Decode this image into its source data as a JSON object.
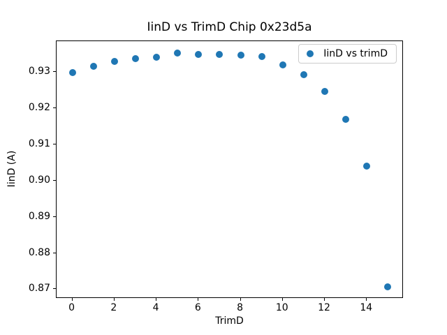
{
  "figure": {
    "background_color": "#ffffff",
    "spine_color": "#000000",
    "legend_border_color": "#cccccc"
  },
  "chart_data": {
    "type": "scatter",
    "title": "IinD vs TrimD Chip 0x23d5a",
    "xlabel": "TrimD",
    "ylabel": "IinD (A)",
    "legend": {
      "label": "IinD vs trimD",
      "position": "upper right"
    },
    "marker_color": "#1f77b4",
    "x": [
      0,
      1,
      2,
      3,
      4,
      5,
      6,
      7,
      8,
      9,
      10,
      11,
      12,
      13,
      14,
      15
    ],
    "y": [
      0.9297,
      0.9314,
      0.9328,
      0.9336,
      0.9339,
      0.9351,
      0.9348,
      0.9348,
      0.9345,
      0.9342,
      0.9319,
      0.9292,
      0.9246,
      0.9169,
      0.904,
      0.8706
    ],
    "xlim": [
      -0.75,
      15.75
    ],
    "ylim": [
      0.8674,
      0.9384
    ],
    "grid": false,
    "xticks": [
      {
        "value": 0,
        "label": "0"
      },
      {
        "value": 2,
        "label": "2"
      },
      {
        "value": 4,
        "label": "4"
      },
      {
        "value": 6,
        "label": "6"
      },
      {
        "value": 8,
        "label": "8"
      },
      {
        "value": 10,
        "label": "10"
      },
      {
        "value": 12,
        "label": "12"
      },
      {
        "value": 14,
        "label": "14"
      }
    ],
    "yticks": [
      {
        "value": 0.87,
        "label": "0.87"
      },
      {
        "value": 0.88,
        "label": "0.88"
      },
      {
        "value": 0.89,
        "label": "0.89"
      },
      {
        "value": 0.9,
        "label": "0.90"
      },
      {
        "value": 0.91,
        "label": "0.91"
      },
      {
        "value": 0.92,
        "label": "0.92"
      },
      {
        "value": 0.93,
        "label": "0.93"
      }
    ]
  }
}
